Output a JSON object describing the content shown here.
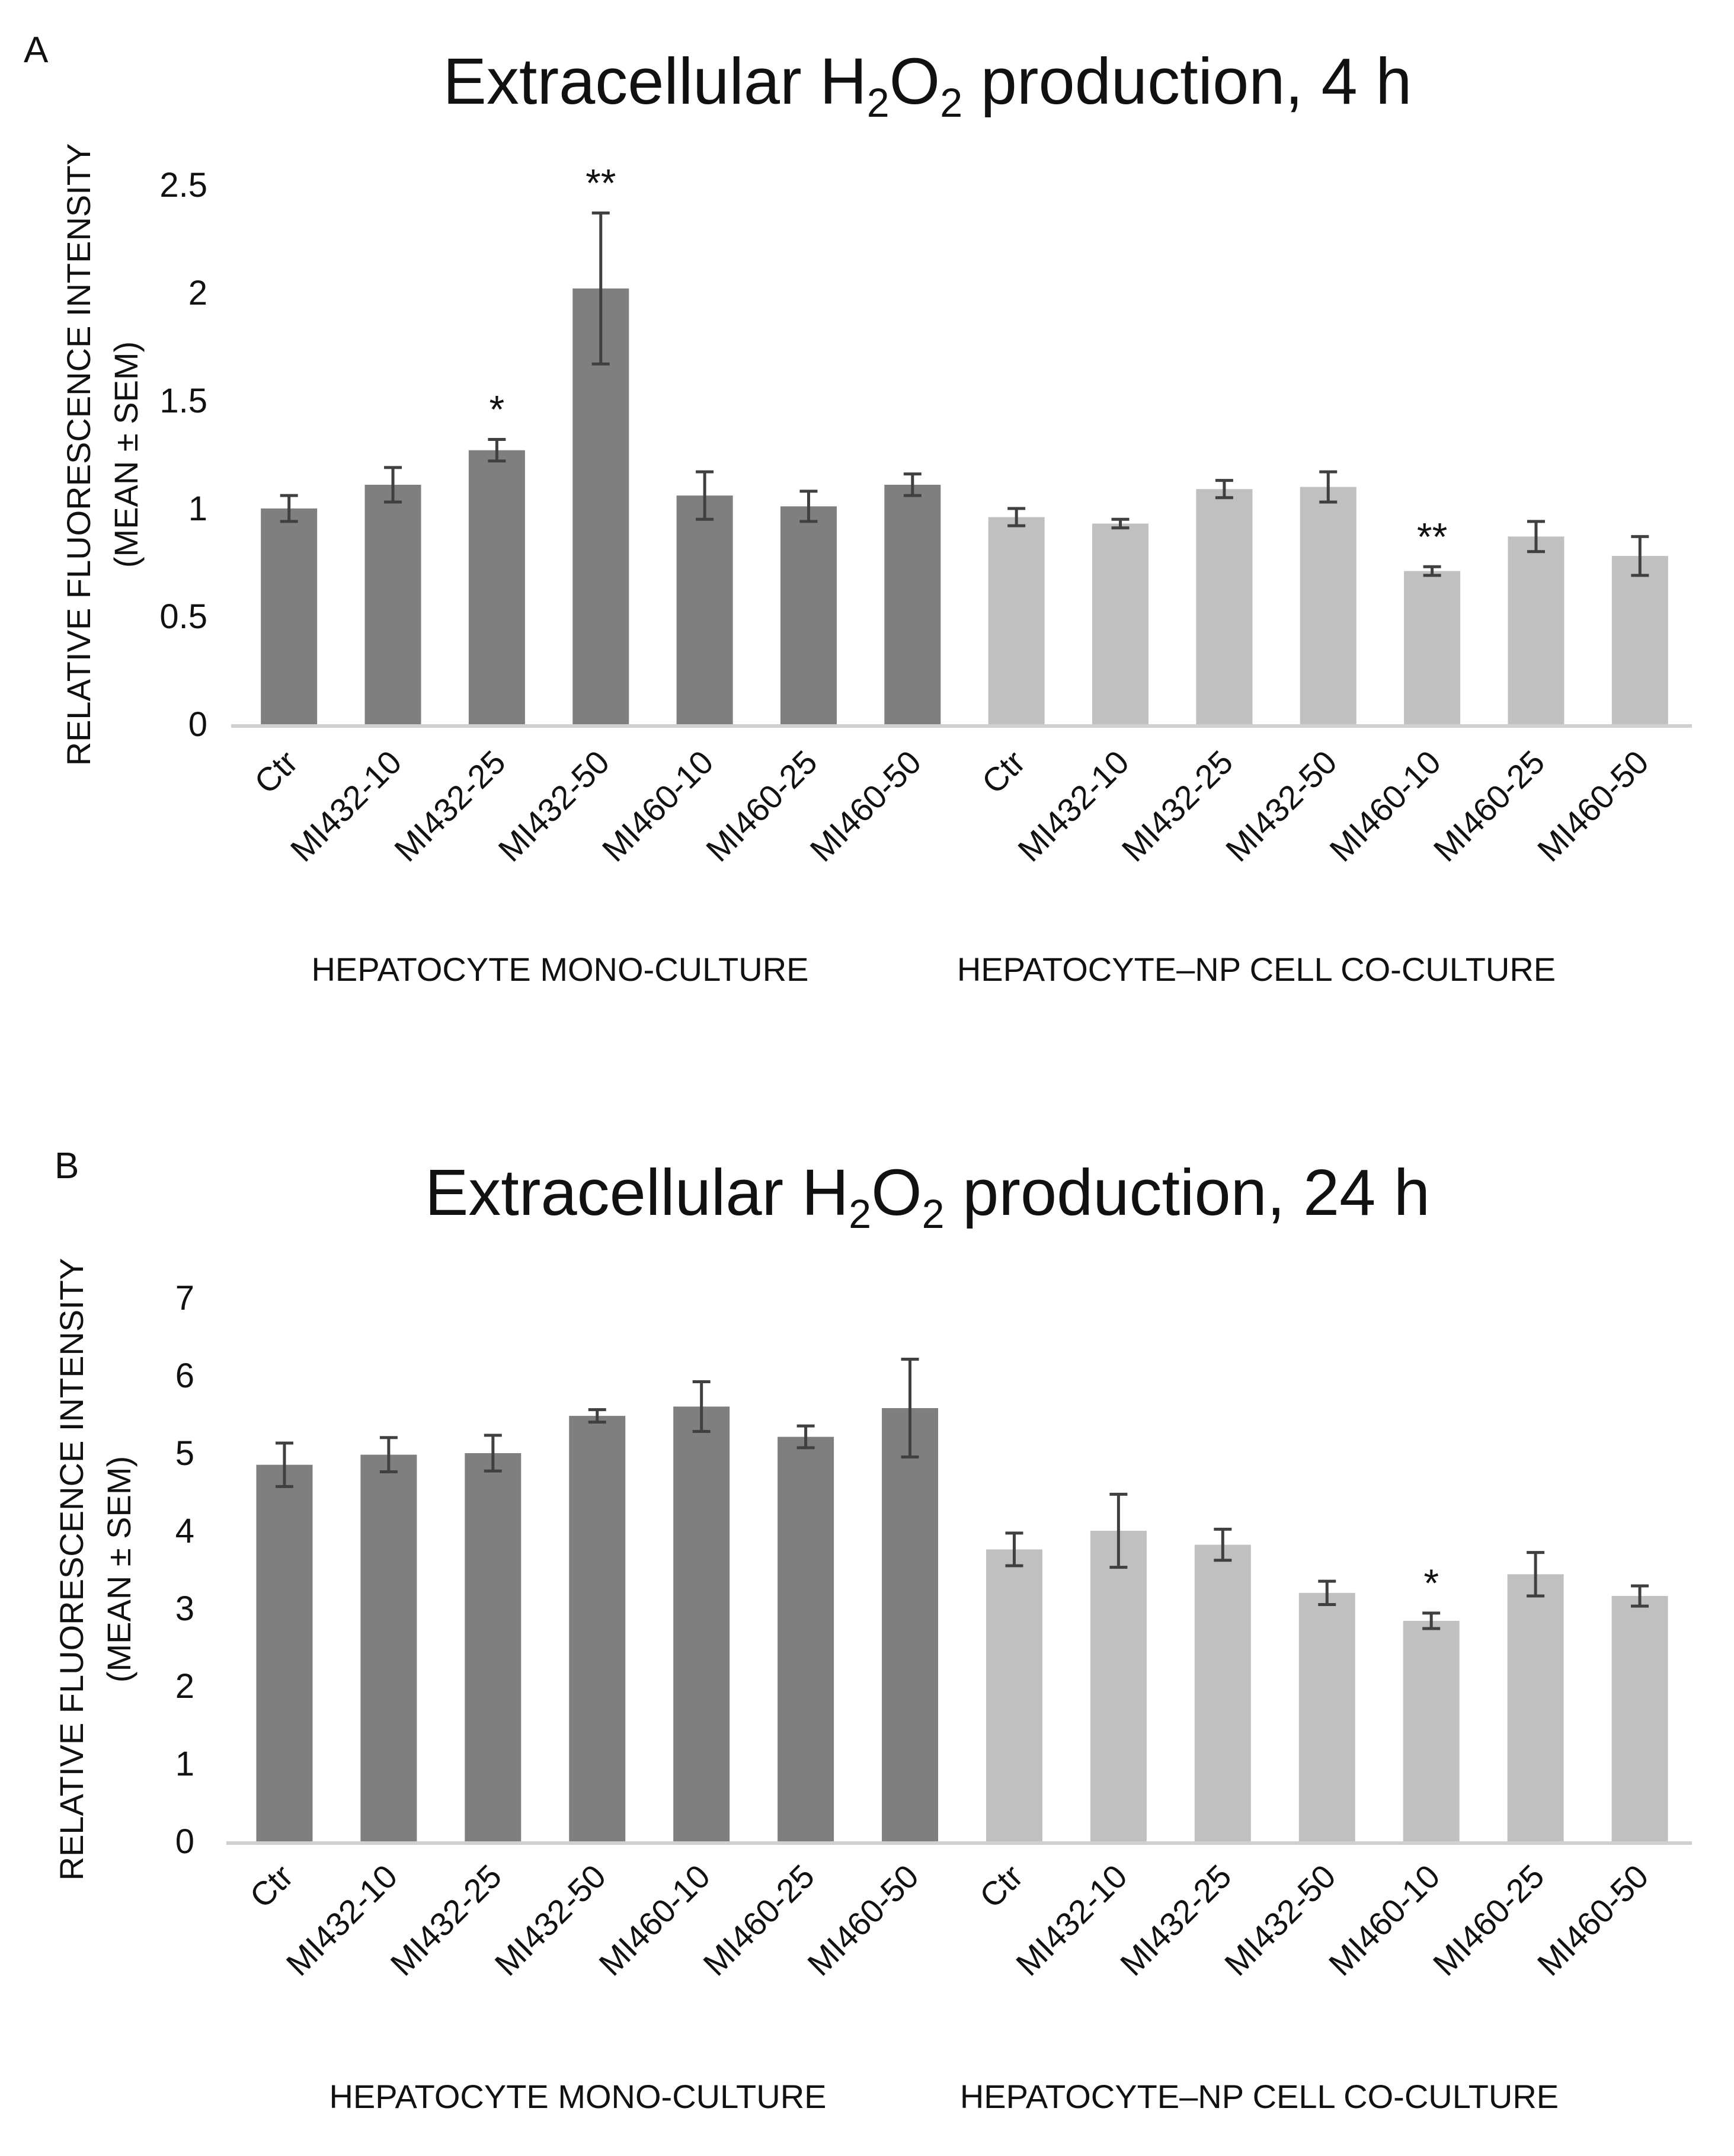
{
  "colors": {
    "mono": "#7f7f7f",
    "co": "#c0c0c0",
    "err": "#404040",
    "axis": "#d0d0d0"
  },
  "chart_data": [
    {
      "type": "bar",
      "panel_label": "A",
      "title_parts": [
        "Extracellular H",
        "2",
        "O",
        "2",
        " production, 4 h"
      ],
      "title": "Extracellular H2O2 production, 4 h",
      "ylabel_line1": "RELATIVE FLUORESCENCE INTENSITY",
      "ylabel_line2": "(MEAN ± SEM)",
      "ylim": [
        0,
        2.5
      ],
      "yticks": [
        0,
        0.5,
        1,
        1.5,
        2,
        2.5
      ],
      "ytick_labels": [
        "0",
        "0.5",
        "1",
        "1.5",
        "2",
        "2.5"
      ],
      "categories": [
        "Ctr",
        "MI432-10",
        "MI432-25",
        "MI432-50",
        "MI460-10",
        "MI460-25",
        "MI460-50",
        "Ctr",
        "MI432-10",
        "MI432-25",
        "MI432-50",
        "MI460-10",
        "MI460-25",
        "MI460-50"
      ],
      "values": [
        1.0,
        1.11,
        1.27,
        2.02,
        1.06,
        1.01,
        1.11,
        0.96,
        0.93,
        1.09,
        1.1,
        0.71,
        0.87,
        0.78
      ],
      "errors": [
        0.06,
        0.08,
        0.05,
        0.35,
        0.11,
        0.07,
        0.05,
        0.04,
        0.02,
        0.04,
        0.07,
        0.02,
        0.07,
        0.09
      ],
      "groups": [
        {
          "name": "HEPATOCYTE MONO-CULTURE",
          "series": "mono",
          "start": 0,
          "end": 6
        },
        {
          "name": "HEPATOCYTE–NP CELL CO-CULTURE",
          "series": "co",
          "start": 7,
          "end": 13
        }
      ],
      "annotations": [
        {
          "index": 2,
          "text": "*"
        },
        {
          "index": 3,
          "text": "**"
        },
        {
          "index": 11,
          "text": "**"
        }
      ]
    },
    {
      "type": "bar",
      "panel_label": "B",
      "title_parts": [
        "Extracellular H",
        "2",
        "O",
        "2",
        " production, 24 h"
      ],
      "title": "Extracellular H2O2 production, 24 h",
      "ylabel_line1": "RELATIVE FLUORESCENCE INTENSITY",
      "ylabel_line2": "(MEAN ± SEM)",
      "ylim": [
        0,
        7
      ],
      "yticks": [
        0,
        1,
        2,
        3,
        4,
        5,
        6,
        7
      ],
      "ytick_labels": [
        "0",
        "1",
        "2",
        "3",
        "4",
        "5",
        "6",
        "7"
      ],
      "categories": [
        "Ctr",
        "MI432-10",
        "MI432-25",
        "MI432-50",
        "MI460-10",
        "MI460-25",
        "MI460-50",
        "Ctr",
        "MI432-10",
        "MI432-25",
        "MI432-50",
        "MI460-10",
        "MI460-25",
        "MI460-50"
      ],
      "values": [
        4.85,
        4.98,
        5.0,
        5.48,
        5.6,
        5.21,
        5.58,
        3.76,
        4.0,
        3.82,
        3.2,
        2.84,
        3.44,
        3.16
      ],
      "errors": [
        0.28,
        0.22,
        0.23,
        0.08,
        0.32,
        0.14,
        0.63,
        0.21,
        0.47,
        0.2,
        0.15,
        0.1,
        0.28,
        0.13
      ],
      "groups": [
        {
          "name": "HEPATOCYTE MONO-CULTURE",
          "series": "mono",
          "start": 0,
          "end": 6
        },
        {
          "name": "HEPATOCYTE–NP CELL CO-CULTURE",
          "series": "co",
          "start": 7,
          "end": 13
        }
      ],
      "annotations": [
        {
          "index": 11,
          "text": "*"
        }
      ]
    }
  ]
}
